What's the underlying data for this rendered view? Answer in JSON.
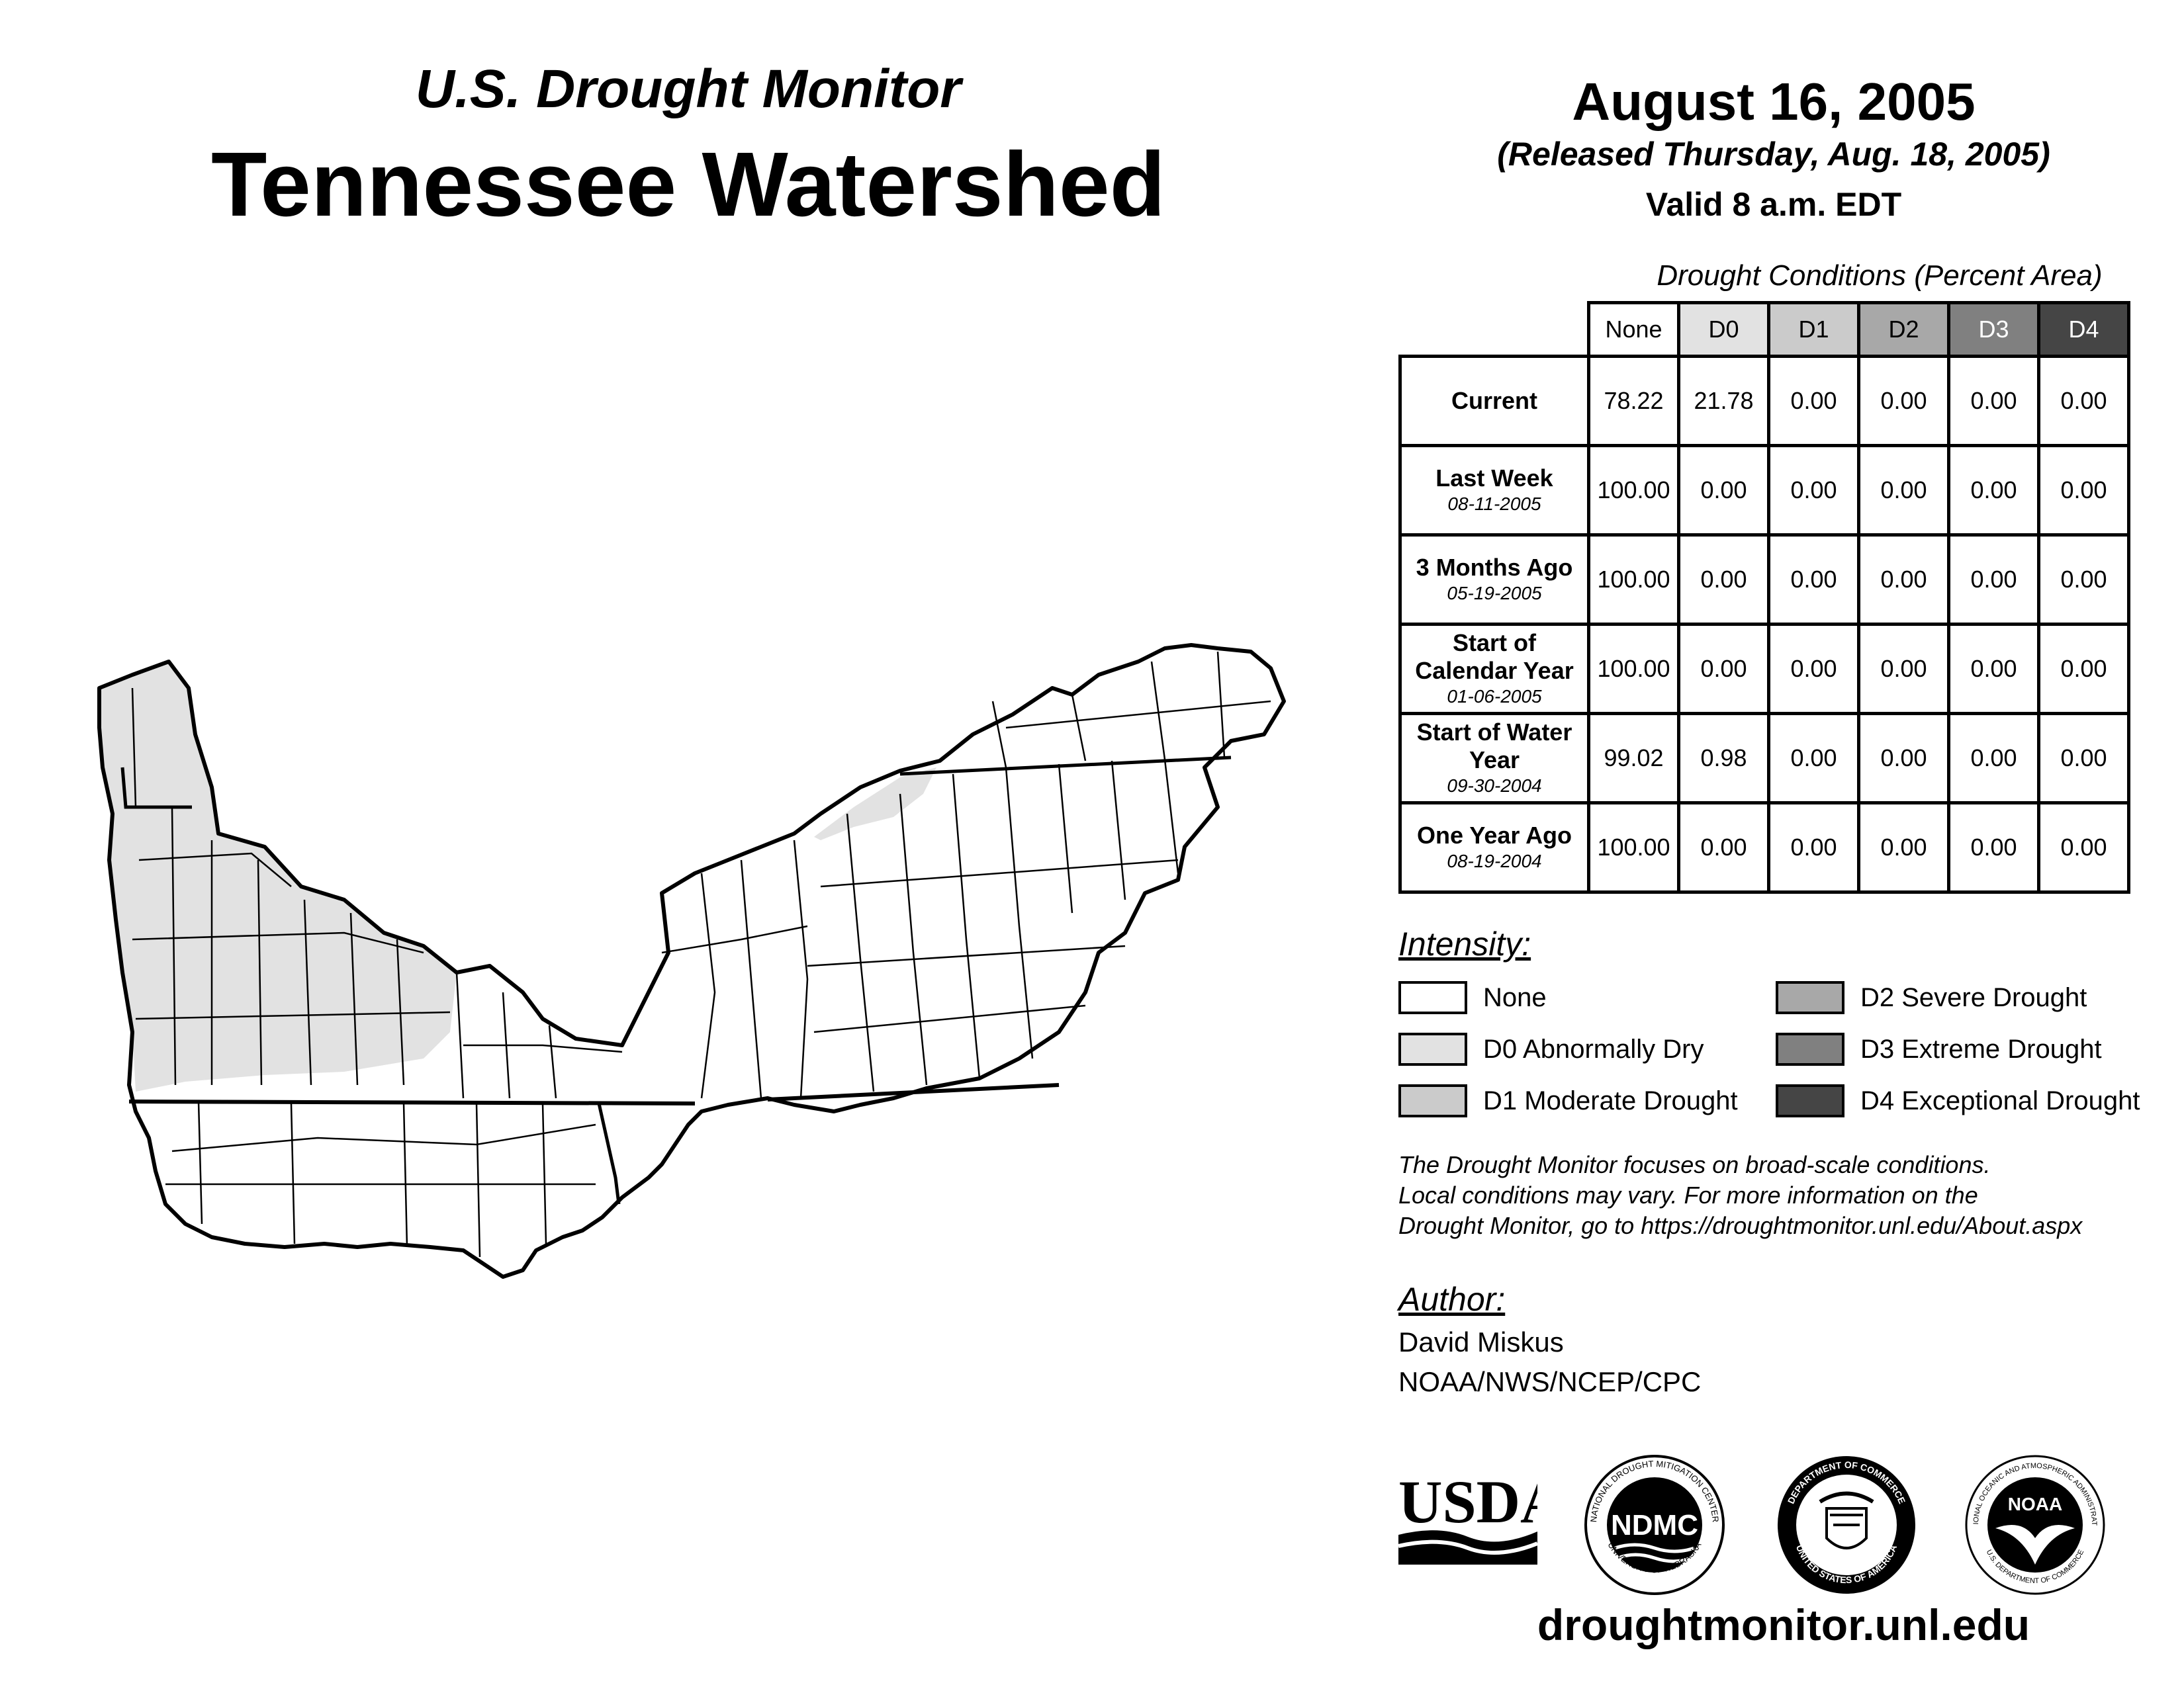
{
  "header": {
    "subtitle": "U.S. Drought Monitor",
    "title": "Tennessee Watershed"
  },
  "map_info": {
    "date": "August 16, 2005",
    "released": "(Released Thursday, Aug. 18, 2005)",
    "valid": "Valid 8 a.m. EDT"
  },
  "table": {
    "caption": "Drought Conditions (Percent Area)",
    "columns": [
      "None",
      "D0",
      "D1",
      "D2",
      "D3",
      "D4"
    ],
    "column_colors": [
      "#ffffff",
      "#e2e2e2",
      "#cbcbcb",
      "#a8a8a8",
      "#808080",
      "#454545"
    ],
    "rows": [
      {
        "label": "Current",
        "date": "",
        "values": [
          "78.22",
          "21.78",
          "0.00",
          "0.00",
          "0.00",
          "0.00"
        ]
      },
      {
        "label": "Last Week",
        "date": "08-11-2005",
        "values": [
          "100.00",
          "0.00",
          "0.00",
          "0.00",
          "0.00",
          "0.00"
        ]
      },
      {
        "label": "3 Months Ago",
        "date": "05-19-2005",
        "values": [
          "100.00",
          "0.00",
          "0.00",
          "0.00",
          "0.00",
          "0.00"
        ]
      },
      {
        "label": "Start of Calendar Year",
        "date": "01-06-2005",
        "values": [
          "100.00",
          "0.00",
          "0.00",
          "0.00",
          "0.00",
          "0.00"
        ]
      },
      {
        "label": "Start of Water Year",
        "date": "09-30-2004",
        "values": [
          "99.02",
          "0.98",
          "0.00",
          "0.00",
          "0.00",
          "0.00"
        ]
      },
      {
        "label": "One Year Ago",
        "date": "08-19-2004",
        "values": [
          "100.00",
          "0.00",
          "0.00",
          "0.00",
          "0.00",
          "0.00"
        ]
      }
    ]
  },
  "legend": {
    "heading": "Intensity:",
    "items": [
      {
        "label": "None",
        "color": "#ffffff"
      },
      {
        "label": "D0 Abnormally Dry",
        "color": "#e2e2e2"
      },
      {
        "label": "D1 Moderate Drought",
        "color": "#cbcbcb"
      },
      {
        "label": "D2 Severe Drought",
        "color": "#a8a8a8"
      },
      {
        "label": "D3 Extreme Drought",
        "color": "#808080"
      },
      {
        "label": "D4 Exceptional Drought",
        "color": "#454545"
      }
    ]
  },
  "note": {
    "line1": "The Drought Monitor focuses on broad-scale conditions.",
    "line2": "Local conditions may vary. For more information on the",
    "line3": "Drought Monitor, go to https://droughtmonitor.unl.edu/About.aspx"
  },
  "author": {
    "heading": "Author:",
    "name": "David Miskus",
    "org": "NOAA/NWS/NCEP/CPC"
  },
  "logos": {
    "usda": "USDA",
    "ndmc": "NDMC",
    "ndmc_ring_top": "NATIONAL DROUGHT MITIGATION CENTER",
    "ndmc_ring_bottom": "UNIVERSITY OF NEBRASKA",
    "doc_ring_top": "DEPARTMENT OF COMMERCE",
    "doc_ring_bottom": "UNITED STATES OF AMERICA",
    "noaa": "NOAA",
    "noaa_ring_top": "NATIONAL OCEANIC AND ATMOSPHERIC ADMINISTRATION",
    "noaa_ring_bottom": "U.S. DEPARTMENT OF COMMERCE"
  },
  "footer": {
    "url": "droughtmonitor.unl.edu"
  }
}
